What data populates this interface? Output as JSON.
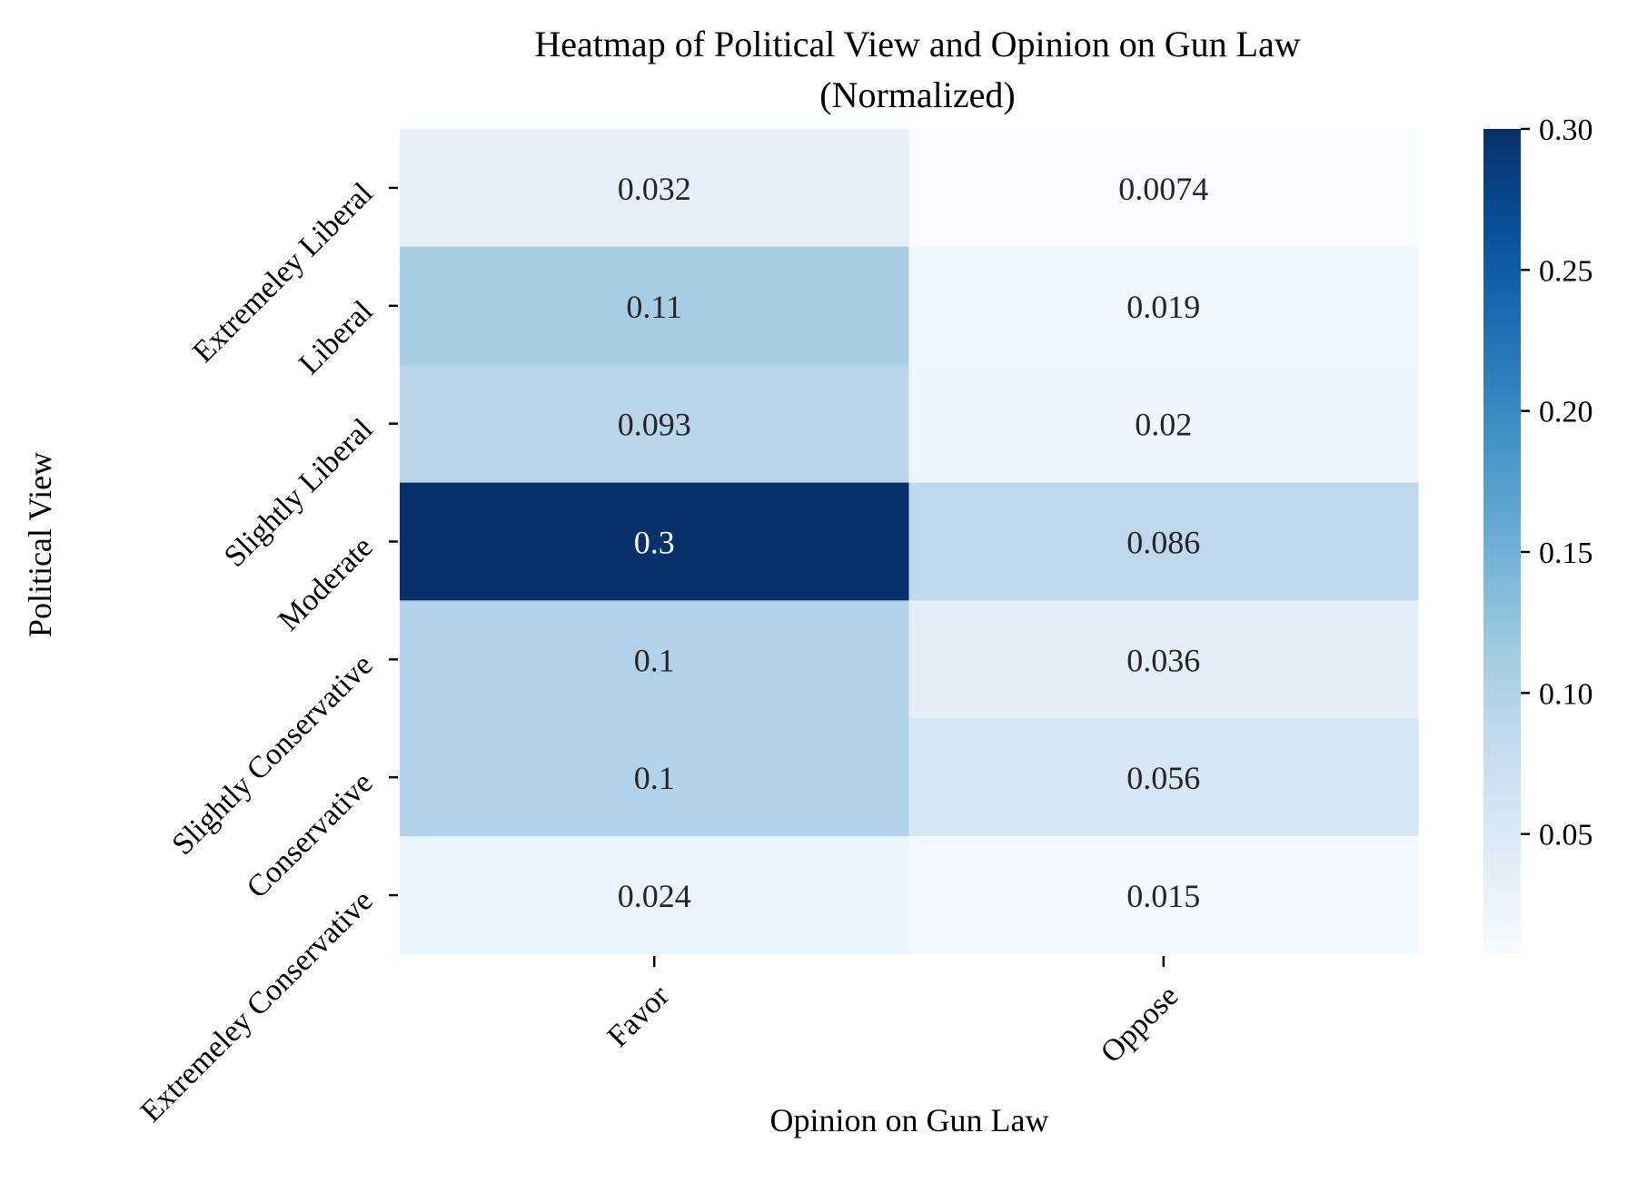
{
  "chart_data": {
    "type": "heatmap",
    "title": "Heatmap of Political View and Opinion on Gun Law",
    "subtitle": "(Normalized)",
    "xlabel": "Opinion on Gun Law",
    "ylabel": "Political View",
    "columns": [
      "Favor",
      "Oppose"
    ],
    "rows": [
      "Extremeley Liberal",
      "Liberal",
      "Slightly Liberal",
      "Moderate",
      "Slightly Conservative",
      "Conservative",
      "Extremeley Conservative"
    ],
    "values": [
      [
        0.032,
        0.0074
      ],
      [
        0.11,
        0.019
      ],
      [
        0.093,
        0.02
      ],
      [
        0.3,
        0.086
      ],
      [
        0.1,
        0.036
      ],
      [
        0.1,
        0.056
      ],
      [
        0.024,
        0.015
      ]
    ],
    "labels": [
      [
        "0.032",
        "0.0074"
      ],
      [
        "0.11",
        "0.019"
      ],
      [
        "0.093",
        "0.02"
      ],
      [
        "0.3",
        "0.086"
      ],
      [
        "0.1",
        "0.036"
      ],
      [
        "0.1",
        "0.056"
      ],
      [
        "0.024",
        "0.015"
      ]
    ],
    "colorbar": {
      "colormap": "Blues",
      "range": [
        0.0074,
        0.3
      ],
      "ticks": [
        0.05,
        0.1,
        0.15,
        0.2,
        0.25,
        0.3
      ],
      "tick_labels": [
        "0.05",
        "0.10",
        "0.15",
        "0.20",
        "0.25",
        "0.30"
      ]
    },
    "colors": {
      "low": "#f7fbff",
      "high": "#08306b",
      "text_dark": "#262626",
      "text_light": "#ffffff"
    }
  }
}
